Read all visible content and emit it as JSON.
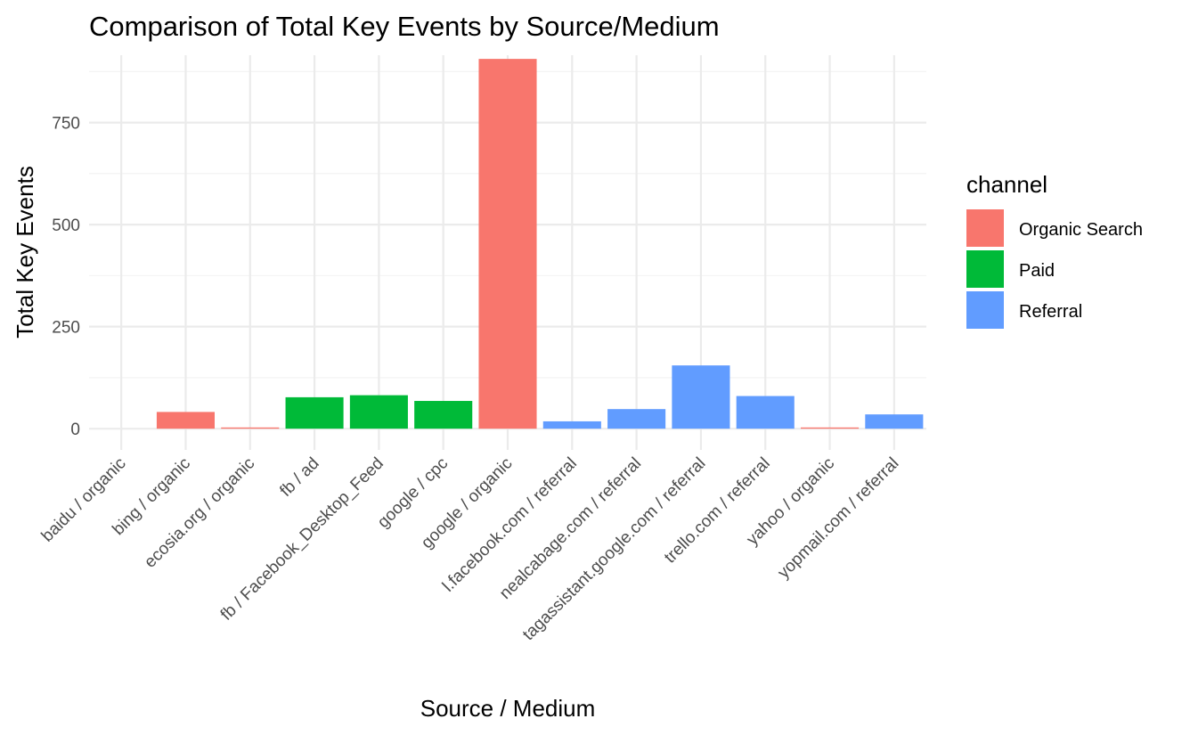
{
  "chart_data": {
    "type": "bar",
    "title": "Comparison of Total Key Events by Source/Medium",
    "xlabel": "Source / Medium",
    "ylabel": "Total Key Events",
    "ylim": [
      -52,
      915
    ],
    "yticks": [
      0,
      250,
      500,
      750
    ],
    "grid": true,
    "legend": {
      "title": "channel",
      "position": "right",
      "entries": [
        {
          "name": "Organic Search",
          "color": "#F8766D"
        },
        {
          "name": "Paid",
          "color": "#00BA38"
        },
        {
          "name": "Referral",
          "color": "#619CFF"
        }
      ]
    },
    "categories": [
      "baidu / organic",
      "bing / organic",
      "ecosia.org / organic",
      "fb / ad",
      "fb / Facebook_Desktop_Feed",
      "google / cpc",
      "google / organic",
      "l.facebook.com / referral",
      "nealcabage.com / referral",
      "tagassistant.google.com / referral",
      "trello.com / referral",
      "yahoo / organic",
      "yopmail.com / referral"
    ],
    "values": [
      0,
      41,
      3,
      77,
      82,
      68,
      906,
      18,
      48,
      155,
      80,
      3,
      35
    ],
    "channels": [
      "Organic Search",
      "Organic Search",
      "Organic Search",
      "Paid",
      "Paid",
      "Paid",
      "Organic Search",
      "Referral",
      "Referral",
      "Referral",
      "Referral",
      "Organic Search",
      "Referral"
    ]
  }
}
